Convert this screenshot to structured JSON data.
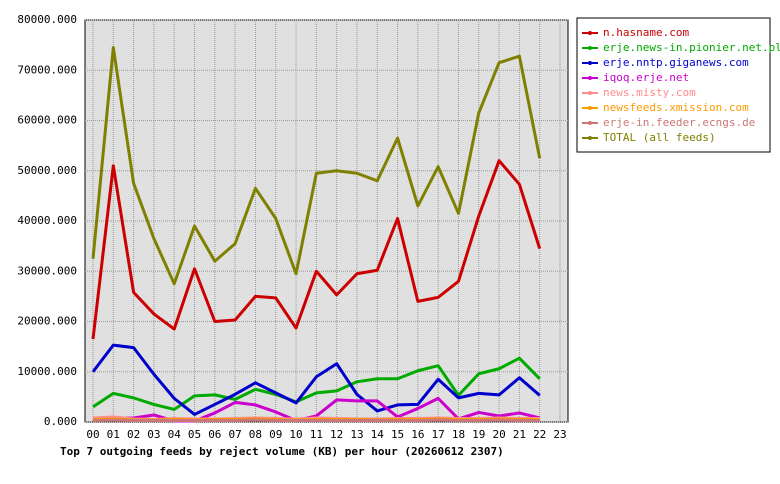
{
  "chart_data": {
    "type": "line",
    "xlabel": "Top 7 outgoing feeds by reject volume (KB) per hour (20260612 2307)",
    "categories": [
      "00",
      "01",
      "02",
      "03",
      "04",
      "05",
      "06",
      "07",
      "08",
      "09",
      "10",
      "11",
      "12",
      "13",
      "14",
      "15",
      "16",
      "17",
      "18",
      "19",
      "20",
      "21",
      "22",
      "23"
    ],
    "ylim": [
      0,
      80000
    ],
    "yticks": [
      {
        "value": 0,
        "label": "0.000"
      },
      {
        "value": 10000,
        "label": "10000.000"
      },
      {
        "value": 20000,
        "label": "20000.000"
      },
      {
        "value": 30000,
        "label": "30000.000"
      },
      {
        "value": 40000,
        "label": "40000.000"
      },
      {
        "value": 50000,
        "label": "50000.000"
      },
      {
        "value": 60000,
        "label": "60000.000"
      },
      {
        "value": 70000,
        "label": "70000.000"
      },
      {
        "value": 80000,
        "label": "80000.000"
      }
    ],
    "grid": true,
    "legend": "right",
    "series": [
      {
        "name": "n.hasname.com",
        "color": "#cc0000",
        "values": [
          16500,
          51000,
          25800,
          21500,
          18500,
          30500,
          20000,
          20300,
          25000,
          24700,
          18700,
          30000,
          25300,
          29500,
          30200,
          40500,
          24000,
          24800,
          28000,
          41000,
          52000,
          47300,
          34500,
          null
        ]
      },
      {
        "name": "erje.news-in.pionier.net.pl",
        "color": "#00aa00",
        "values": [
          3000,
          5700,
          4800,
          3500,
          2500,
          5200,
          5400,
          4500,
          6500,
          5500,
          4000,
          5800,
          6200,
          8000,
          8600,
          8600,
          10200,
          11200,
          5300,
          9600,
          10600,
          12700,
          8600,
          null
        ]
      },
      {
        "name": "erje.nntp.giganews.com",
        "color": "#0000cc",
        "values": [
          10000,
          15300,
          14800,
          9500,
          4700,
          1500,
          3500,
          5500,
          7800,
          5800,
          3800,
          9000,
          11600,
          5500,
          2200,
          3400,
          3500,
          8500,
          4800,
          5700,
          5400,
          8800,
          5300,
          null
        ]
      },
      {
        "name": "iqoq.erje.net",
        "color": "#cc00cc",
        "values": [
          500,
          700,
          800,
          1400,
          200,
          200,
          1800,
          3900,
          3400,
          2000,
          300,
          1200,
          4400,
          4200,
          4200,
          1000,
          2700,
          4700,
          600,
          1900,
          1200,
          1800,
          800,
          null
        ]
      },
      {
        "name": "news.misty.com",
        "color": "#ff8c8c",
        "values": [
          800,
          1000,
          600,
          500,
          700,
          600,
          600,
          700,
          800,
          700,
          600,
          800,
          700,
          600,
          600,
          700,
          700,
          800,
          700,
          700,
          800,
          700,
          700,
          null
        ]
      },
      {
        "name": "newsfeeds.xmission.com",
        "color": "#ff9900",
        "values": [
          500,
          600,
          400,
          400,
          500,
          400,
          500,
          500,
          600,
          500,
          400,
          500,
          500,
          500,
          400,
          500,
          500,
          600,
          500,
          500,
          600,
          500,
          500,
          null
        ]
      },
      {
        "name": "erje-in.feeder.ecngs.de",
        "color": "#cc7777",
        "values": [
          300,
          400,
          300,
          300,
          300,
          300,
          300,
          300,
          400,
          300,
          300,
          300,
          300,
          300,
          300,
          300,
          300,
          400,
          300,
          300,
          400,
          300,
          300,
          null
        ]
      },
      {
        "name": "TOTAL (all feeds)",
        "color": "#808000",
        "values": [
          32500,
          74500,
          47500,
          36500,
          27500,
          39000,
          32000,
          35500,
          46500,
          40500,
          29500,
          49500,
          50000,
          49500,
          48000,
          56500,
          43000,
          50800,
          41500,
          61500,
          71500,
          72800,
          52500,
          null
        ]
      }
    ]
  }
}
